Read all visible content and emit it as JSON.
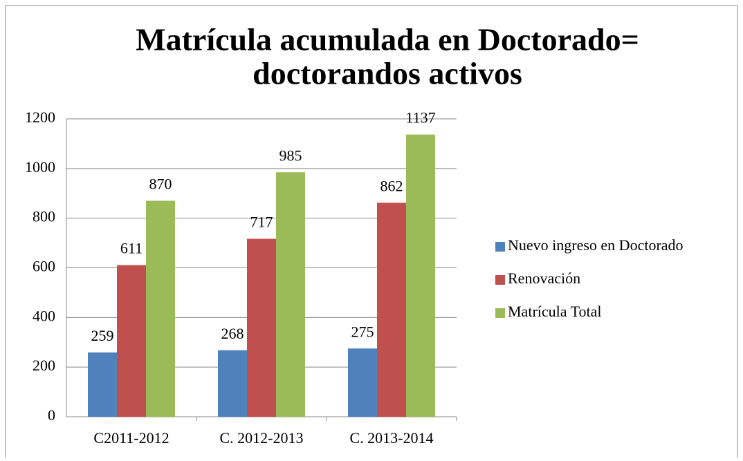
{
  "chart_data": {
    "type": "bar",
    "title": [
      "Matrícula acumulada en Doctorado=",
      "doctorandos activos"
    ],
    "categories": [
      "C2011-2012",
      "C. 2012-2013",
      "C. 2013-2014"
    ],
    "series": [
      {
        "name": "Nuevo ingreso en Doctorado",
        "color": "#4f81bd",
        "values": [
          259,
          268,
          275
        ]
      },
      {
        "name": "Renovación",
        "color": "#c0504d",
        "values": [
          611,
          717,
          862
        ]
      },
      {
        "name": "Matrícula Total",
        "color": "#9bbb59",
        "values": [
          870,
          985,
          1137
        ]
      }
    ],
    "ylim": [
      0,
      1200
    ],
    "yticks": [
      0,
      200,
      400,
      600,
      800,
      1000,
      1200
    ],
    "grid": true,
    "legend": "right"
  }
}
